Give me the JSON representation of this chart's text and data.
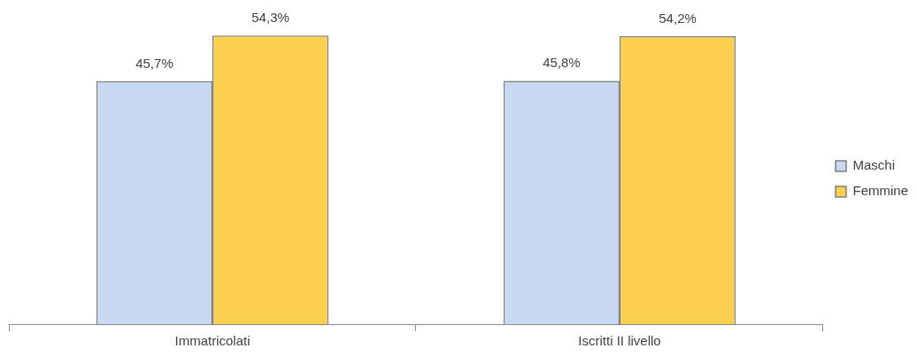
{
  "chart_data": {
    "type": "bar",
    "categories": [
      "Immatricolati",
      "Iscritti II livello"
    ],
    "series": [
      {
        "name": "Maschi",
        "color": "#c6d9f1",
        "values": [
          45.7,
          45.8
        ],
        "value_labels": [
          "45,7%",
          "45,8%"
        ]
      },
      {
        "name": "Femmine",
        "color": "#fdd14f",
        "values": [
          54.3,
          54.2
        ],
        "value_labels": [
          "54,3%",
          "54,2%"
        ]
      }
    ],
    "tick_labels": "x",
    "grid": false,
    "legend": "right"
  }
}
